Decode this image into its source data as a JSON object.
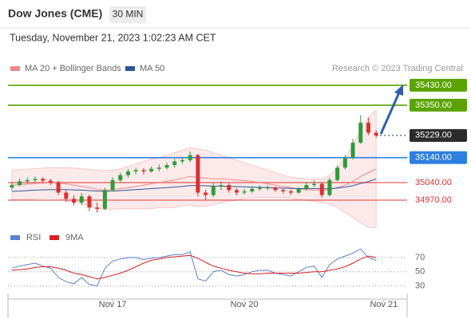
{
  "header": {
    "title": "Dow Jones (CME)",
    "timeframe": "30 MIN",
    "timestamp": "Tuesday, November 21, 2023 1:02:23 AM CET"
  },
  "chart_data": [
    {
      "type": "candlestick",
      "annotation": "Research © 2023 Trading Central",
      "xlim": [
        -0.5,
        51
      ],
      "ylim": [
        34877,
        35468
      ],
      "candles": [
        [
          35020,
          35042,
          35012,
          35030
        ],
        [
          35030,
          35055,
          35025,
          35045
        ],
        [
          35045,
          35060,
          35035,
          35050
        ],
        [
          35050,
          35065,
          35040,
          35055
        ],
        [
          35055,
          35062,
          35038,
          35048
        ],
        [
          35048,
          35055,
          35030,
          35040
        ],
        [
          35040,
          35048,
          34990,
          35000
        ],
        [
          35000,
          35010,
          34962,
          34975
        ],
        [
          34975,
          34990,
          34948,
          34960
        ],
        [
          34960,
          34998,
          34950,
          34985
        ],
        [
          34985,
          34992,
          34925,
          34940
        ],
        [
          34940,
          34960,
          34920,
          34935
        ],
        [
          34935,
          35020,
          34930,
          35010
        ],
        [
          35010,
          35062,
          35005,
          35050
        ],
        [
          35050,
          35080,
          35040,
          35070
        ],
        [
          35070,
          35095,
          35060,
          35085
        ],
        [
          35085,
          35100,
          35075,
          35090
        ],
        [
          35090,
          35098,
          35072,
          35085
        ],
        [
          35085,
          35105,
          35080,
          35095
        ],
        [
          35095,
          35112,
          35085,
          35100
        ],
        [
          35100,
          35120,
          35092,
          35110
        ],
        [
          35110,
          35135,
          35100,
          35125
        ],
        [
          35125,
          35142,
          35115,
          35130
        ],
        [
          35130,
          35165,
          35120,
          35150
        ],
        [
          35150,
          35155,
          34985,
          35000
        ],
        [
          35000,
          35012,
          34970,
          34990
        ],
        [
          34990,
          35040,
          34982,
          35025
        ],
        [
          35025,
          35045,
          35010,
          35030
        ],
        [
          35030,
          35038,
          35000,
          35010
        ],
        [
          35010,
          35018,
          34990,
          35000
        ],
        [
          35000,
          35015,
          34992,
          35005
        ],
        [
          35005,
          35025,
          34998,
          35015
        ],
        [
          35015,
          35028,
          35008,
          35020
        ],
        [
          35020,
          35030,
          35010,
          35020
        ],
        [
          35020,
          35025,
          35002,
          35010
        ],
        [
          35010,
          35018,
          34995,
          35005
        ],
        [
          35005,
          35012,
          34990,
          35000
        ],
        [
          35000,
          35022,
          34995,
          35015
        ],
        [
          35015,
          35042,
          35008,
          35030
        ],
        [
          35030,
          35048,
          35022,
          35035
        ],
        [
          35035,
          35040,
          34980,
          34990
        ],
        [
          34990,
          35060,
          34985,
          35050
        ],
        [
          35050,
          35110,
          35045,
          35100
        ],
        [
          35100,
          35150,
          35092,
          35140
        ],
        [
          35140,
          35215,
          35132,
          35200
        ],
        [
          35200,
          35310,
          35195,
          35280
        ],
        [
          35280,
          35300,
          35230,
          35240
        ],
        [
          35240,
          35250,
          35220,
          35229
        ]
      ],
      "up_color": "#2e9b3a",
      "down_color": "#d93030",
      "series": [
        {
          "name": "MA 20 + Bollinger Bands",
          "color": "#f08a8a",
          "values": [
            35030,
            35032,
            35034,
            35036,
            35038,
            35040,
            35038,
            35035,
            35030,
            35025,
            35020,
            35012,
            35010,
            35012,
            35015,
            35020,
            35025,
            35030,
            35035,
            35040,
            35045,
            35050,
            35058,
            35065,
            35060,
            35058,
            35055,
            35055,
            35053,
            35050,
            35048,
            35045,
            35040,
            35035,
            35030,
            35025,
            35020,
            35015,
            35012,
            35010,
            35008,
            35012,
            35020,
            35030,
            35045,
            35065,
            35080,
            35095
          ],
          "bollinger_upper": [
            35090,
            35092,
            35094,
            35096,
            35098,
            35100,
            35100,
            35100,
            35098,
            35095,
            35092,
            35090,
            35088,
            35090,
            35095,
            35105,
            35115,
            35125,
            35135,
            35140,
            35150,
            35160,
            35170,
            35180,
            35175,
            35170,
            35160,
            35150,
            35140,
            35130,
            35120,
            35110,
            35100,
            35090,
            35080,
            35070,
            35062,
            35058,
            35055,
            35055,
            35055,
            35070,
            35100,
            35140,
            35190,
            35250,
            35300,
            35330
          ],
          "bollinger_lower": [
            34970,
            34972,
            34974,
            34976,
            34978,
            34980,
            34976,
            34970,
            34962,
            34955,
            34948,
            34934,
            34932,
            34934,
            34935,
            34935,
            34935,
            34935,
            34935,
            34940,
            34940,
            34940,
            34946,
            34950,
            34945,
            34946,
            34950,
            34960,
            34966,
            34970,
            34976,
            34980,
            34980,
            34980,
            34980,
            34980,
            34978,
            34972,
            34969,
            34965,
            34961,
            34954,
            34940,
            34920,
            34900,
            34880,
            34860,
            34860
          ]
        },
        {
          "name": "MA 50",
          "color": "#2f5597",
          "values": [
            35005,
            35006,
            35008,
            35010,
            35011,
            35012,
            35012,
            35012,
            35011,
            35010,
            35008,
            35006,
            35005,
            35006,
            35008,
            35010,
            35012,
            35014,
            35016,
            35018,
            35020,
            35022,
            35025,
            35028,
            35028,
            35027,
            35026,
            35026,
            35025,
            35024,
            35023,
            35022,
            35021,
            35020,
            35019,
            35018,
            35017,
            35016,
            35016,
            35016,
            35015,
            35016,
            35018,
            35022,
            35028,
            35036,
            35044,
            35055
          ]
        }
      ],
      "levels": [
        {
          "value": 35430,
          "label": "35430.00",
          "color": "#5aa300",
          "boxed": true
        },
        {
          "value": 35350,
          "label": "35350.00",
          "color": "#5aa300",
          "boxed": true
        },
        {
          "value": 35229,
          "label": "35229.00",
          "color": "#2b2b2b",
          "boxed": true,
          "dotted": true
        },
        {
          "value": 35140,
          "label": "35140.00",
          "color": "#2f7fe0",
          "boxed": true
        },
        {
          "value": 35040,
          "label": "35040.00",
          "color": "#e03030",
          "boxed": false
        },
        {
          "value": 34970,
          "label": "34970.00",
          "color": "#e03030",
          "boxed": false
        }
      ]
    },
    {
      "type": "line",
      "xlim": [
        -0.5,
        51
      ],
      "ylim": [
        15,
        90
      ],
      "yticks": [
        70,
        50,
        30
      ],
      "grid": true,
      "xticks": [
        {
          "value": 13,
          "label": "Nov 17"
        },
        {
          "value": 30,
          "label": "Nov 20"
        },
        {
          "value": 48,
          "label": "Nov 21"
        }
      ],
      "series": [
        {
          "name": "RSI",
          "color": "#5b7fd6",
          "values": [
            55,
            58,
            60,
            62,
            58,
            55,
            42,
            36,
            33,
            42,
            32,
            30,
            55,
            65,
            68,
            70,
            70,
            67,
            69,
            70,
            72,
            74,
            74,
            78,
            40,
            37,
            50,
            52,
            46,
            44,
            46,
            50,
            52,
            52,
            48,
            46,
            44,
            50,
            56,
            58,
            42,
            60,
            68,
            72,
            76,
            82,
            70,
            66
          ]
        },
        {
          "name": "9MA",
          "color": "#d62020",
          "values": [
            52,
            53,
            54,
            56,
            57,
            57,
            55,
            52,
            48,
            46,
            43,
            40,
            42,
            45,
            48,
            52,
            57,
            62,
            66,
            68,
            70,
            71,
            72,
            73,
            69,
            63,
            58,
            55,
            52,
            50,
            48,
            47,
            47,
            48,
            48,
            48,
            48,
            48,
            49,
            50,
            50,
            52,
            54,
            57,
            62,
            68,
            72,
            70
          ]
        }
      ]
    }
  ]
}
